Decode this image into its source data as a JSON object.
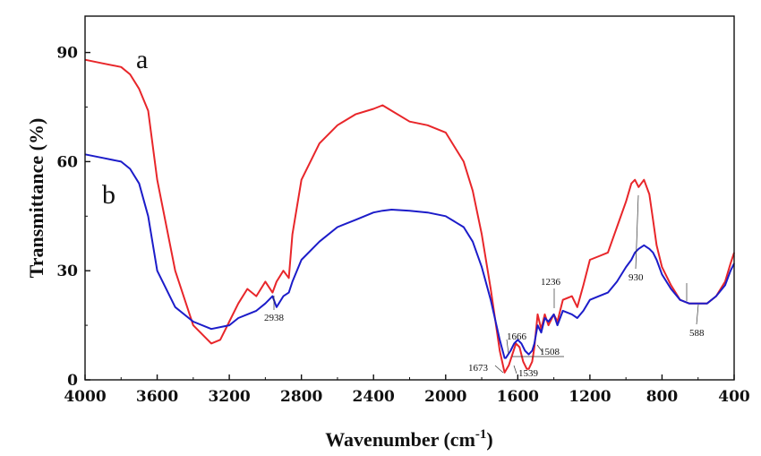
{
  "chart_data": {
    "type": "line",
    "xlabel": "Wavenumber (cm",
    "xlabel_sup": "-1",
    "xlabel_close": ")",
    "ylabel": "Transmittance (%)",
    "xlim": [
      4000,
      400
    ],
    "ylim": [
      0,
      100
    ],
    "x_ticks": [
      4000,
      3600,
      3200,
      2800,
      2400,
      2000,
      1600,
      1200,
      800,
      400
    ],
    "x_tick_labels": [
      "4000",
      "3600",
      "3200",
      "2800",
      "2400",
      "2000",
      "1600",
      "1200",
      "800",
      "400"
    ],
    "y_ticks": [
      0,
      30,
      60,
      90
    ],
    "y_tick_labels": [
      "0",
      "30",
      "60",
      "90"
    ],
    "grid": false,
    "series": [
      {
        "name": "a",
        "color": "#e8262a",
        "x": [
          4000,
          3900,
          3800,
          3750,
          3700,
          3650,
          3600,
          3500,
          3400,
          3300,
          3250,
          3200,
          3150,
          3100,
          3050,
          3000,
          2960,
          2938,
          2900,
          2870,
          2850,
          2800,
          2700,
          2600,
          2500,
          2400,
          2350,
          2300,
          2200,
          2100,
          2000,
          1900,
          1850,
          1800,
          1750,
          1700,
          1673,
          1650,
          1630,
          1610,
          1590,
          1570,
          1550,
          1539,
          1520,
          1508,
          1490,
          1470,
          1450,
          1430,
          1400,
          1380,
          1350,
          1300,
          1270,
          1236,
          1200,
          1150,
          1100,
          1050,
          1000,
          970,
          950,
          930,
          900,
          870,
          850,
          830,
          800,
          750,
          700,
          650,
          600,
          550,
          500,
          450,
          420,
          400
        ],
        "values": [
          88,
          87,
          86,
          84,
          80,
          74,
          55,
          30,
          15,
          10,
          11,
          16,
          21,
          25,
          23,
          27,
          24,
          27,
          30,
          28,
          40,
          55,
          65,
          70,
          73,
          74.5,
          75.5,
          74,
          71,
          70,
          68,
          60,
          52,
          40,
          25,
          8,
          2,
          4,
          7,
          10,
          9,
          5,
          3,
          3,
          5,
          9,
          18,
          14,
          18,
          15,
          18,
          16,
          22,
          23,
          20,
          26,
          33,
          34,
          35,
          42,
          49,
          54,
          55,
          53,
          55,
          51,
          44,
          37,
          31,
          26,
          22,
          21,
          21,
          21,
          23,
          27,
          32,
          35
        ]
      },
      {
        "name": "b",
        "color": "#1c1cc9",
        "x": [
          4000,
          3900,
          3800,
          3750,
          3700,
          3650,
          3600,
          3500,
          3400,
          3300,
          3200,
          3150,
          3100,
          3050,
          3000,
          2960,
          2938,
          2900,
          2870,
          2850,
          2800,
          2700,
          2600,
          2500,
          2400,
          2350,
          2300,
          2200,
          2100,
          2000,
          1900,
          1850,
          1800,
          1750,
          1700,
          1673,
          1666,
          1640,
          1620,
          1600,
          1580,
          1560,
          1539,
          1520,
          1508,
          1490,
          1470,
          1450,
          1430,
          1400,
          1380,
          1350,
          1300,
          1270,
          1236,
          1200,
          1150,
          1100,
          1050,
          1000,
          970,
          950,
          930,
          900,
          870,
          850,
          830,
          800,
          750,
          700,
          650,
          600,
          550,
          500,
          450,
          420,
          400
        ],
        "values": [
          62,
          61,
          60,
          58,
          54,
          45,
          30,
          20,
          16,
          14,
          15,
          17,
          18,
          19,
          21,
          23,
          20,
          23,
          24,
          27,
          33,
          38,
          42,
          44,
          46,
          46.5,
          46.8,
          46.5,
          46,
          45,
          42,
          38,
          31,
          22,
          11,
          6,
          6,
          8,
          10,
          11,
          10,
          8,
          7,
          8,
          10,
          15,
          13,
          17,
          16,
          18,
          15,
          19,
          18,
          17,
          19,
          22,
          23,
          24,
          27,
          31,
          33,
          35,
          36,
          37,
          36,
          35,
          33,
          29,
          25,
          22,
          21,
          21,
          21,
          23,
          26,
          30,
          32
        ]
      }
    ],
    "series_labels": [
      "a",
      "b"
    ],
    "annotations": [
      "2938",
      "1236",
      "930",
      "1666",
      "1508",
      "1673",
      "1539",
      "588"
    ]
  }
}
